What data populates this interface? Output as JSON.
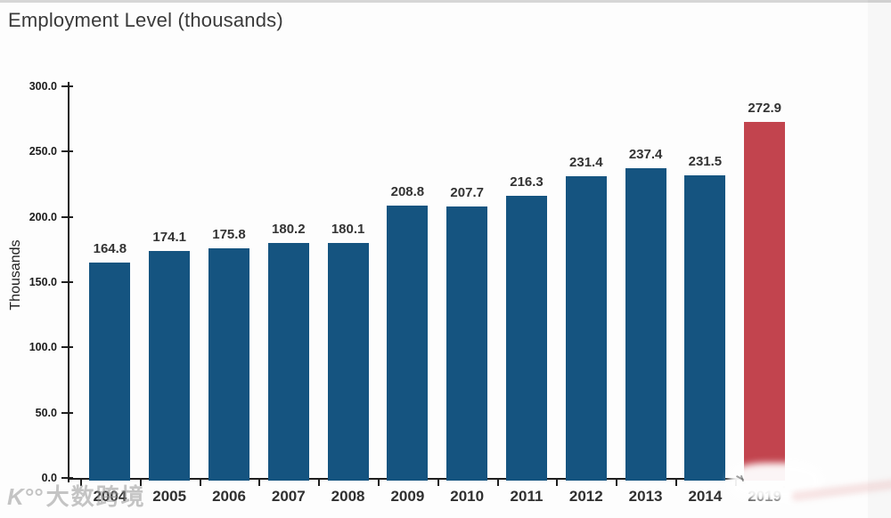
{
  "page": {
    "title": "Employment Level (thousands)"
  },
  "watermark": {
    "logo": "K°°",
    "text": "大数跨境"
  },
  "chart_data": {
    "type": "bar",
    "title": "Employment Level (thousands)",
    "xlabel": "",
    "ylabel": "Thousands",
    "categories": [
      "2004",
      "2005",
      "2006",
      "2007",
      "2008",
      "2009",
      "2010",
      "2011",
      "2012",
      "2013",
      "2014",
      "2019"
    ],
    "values": [
      164.8,
      174.1,
      175.8,
      180.2,
      180.1,
      208.8,
      207.7,
      216.3,
      231.4,
      237.4,
      231.5,
      272.9
    ],
    "value_labels": [
      "164.8",
      "174.1",
      "175.8",
      "180.2",
      "180.1",
      "208.8",
      "207.7",
      "216.3",
      "231.4",
      "237.4",
      "231.5",
      "272.9"
    ],
    "highlight_index": 11,
    "ylim": [
      0,
      300
    ],
    "ytick_labels": [
      "0.0",
      "50.0",
      "100.0",
      "150.0",
      "200.0",
      "250.0",
      "300.0"
    ],
    "grid": false,
    "legend": null,
    "colors": {
      "bar": "#155480",
      "highlight": "#c2444e",
      "axis": "#1f1f1f",
      "text": "#333333"
    }
  }
}
